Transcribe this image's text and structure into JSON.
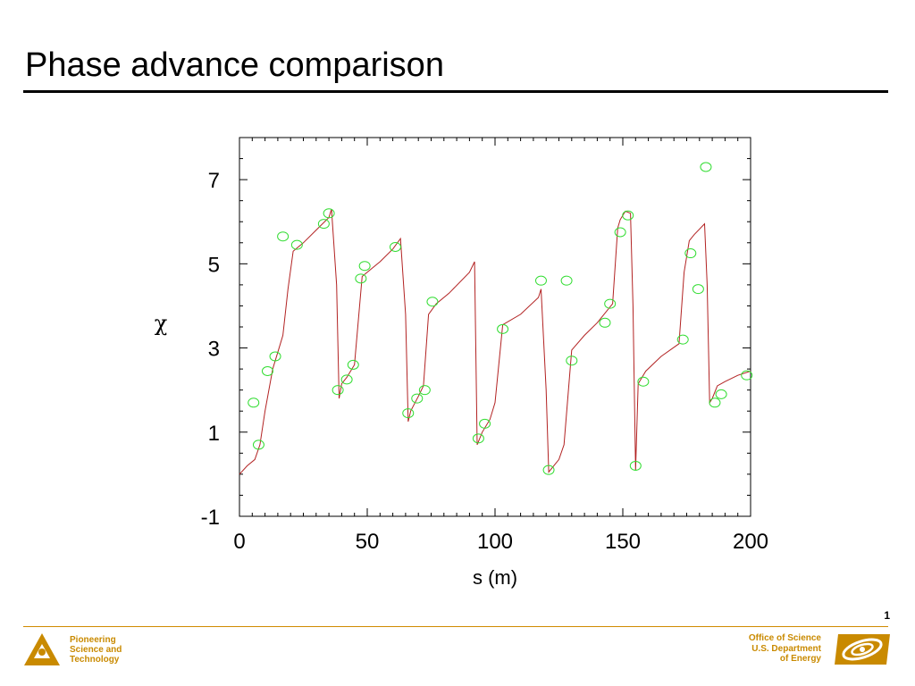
{
  "slide": {
    "title": "Phase advance comparison",
    "page_number": "1"
  },
  "footer": {
    "left_lines": [
      "Pioneering",
      "Science and",
      "Technology"
    ],
    "right_lines": [
      "Office of Science",
      "U.S. Department",
      "of Energy"
    ],
    "left_logo_icon": "argonne-triangle-logo-icon",
    "right_logo_icon": "doe-office-of-science-logo-icon",
    "accent_color": "#c98a00"
  },
  "chart_data": {
    "type": "line",
    "xlabel": "s (m)",
    "ylabel": "χ",
    "xlim": [
      0,
      200
    ],
    "ylim": [
      -1,
      8
    ],
    "xticks": [
      0,
      50,
      100,
      150,
      200
    ],
    "yticks": [
      -1,
      1,
      3,
      5,
      7
    ],
    "grid": false,
    "series": [
      {
        "style": "line",
        "color": "#b22222",
        "x": [
          0,
          3,
          6,
          8,
          10,
          13,
          15,
          17,
          19,
          21,
          25,
          30,
          35,
          36,
          38,
          39,
          40,
          42,
          45,
          48,
          50,
          55,
          60,
          63,
          65,
          66,
          67,
          70,
          72,
          74,
          77,
          82,
          90,
          92,
          93,
          95,
          98,
          100,
          103,
          110,
          117,
          118,
          120,
          121,
          125,
          127,
          130,
          135,
          140,
          146,
          148,
          149,
          151,
          153,
          154,
          155,
          156,
          159,
          165,
          172,
          174,
          176,
          178,
          182,
          183,
          184,
          185,
          187,
          190,
          195,
          200
        ],
        "y": [
          0.0,
          0.2,
          0.35,
          0.7,
          1.5,
          2.5,
          2.9,
          3.3,
          4.4,
          5.3,
          5.5,
          5.8,
          6.1,
          6.3,
          4.5,
          1.8,
          2.15,
          2.3,
          2.6,
          4.7,
          4.8,
          5.05,
          5.35,
          5.6,
          3.8,
          1.25,
          1.5,
          1.85,
          2.1,
          3.8,
          4.05,
          4.3,
          4.8,
          5.05,
          0.7,
          1.0,
          1.3,
          1.7,
          3.55,
          3.8,
          4.2,
          4.4,
          2.0,
          0.05,
          0.35,
          0.7,
          2.95,
          3.3,
          3.6,
          4.05,
          5.85,
          6.05,
          6.25,
          6.2,
          4.0,
          0.1,
          2.15,
          2.45,
          2.8,
          3.1,
          4.8,
          5.55,
          5.7,
          5.95,
          4.5,
          1.7,
          1.8,
          2.1,
          2.2,
          2.35,
          2.45
        ]
      },
      {
        "style": "markers",
        "color": "#33dd33",
        "x": [
          5.5,
          7.5,
          11,
          14,
          17,
          22.5,
          33,
          35,
          38.5,
          42,
          44.5,
          47.5,
          49,
          61,
          66,
          69.5,
          72.5,
          75.5,
          93.5,
          96,
          103,
          118,
          121,
          128,
          130,
          143,
          145,
          149,
          152,
          155,
          158,
          173.5,
          176.5,
          179.5,
          182.5,
          186,
          188.5,
          198.5
        ],
        "y": [
          1.7,
          0.7,
          2.45,
          2.8,
          5.65,
          5.45,
          5.95,
          6.2,
          2.0,
          2.25,
          2.6,
          4.65,
          4.95,
          5.4,
          1.45,
          1.8,
          2.0,
          4.1,
          0.85,
          1.2,
          3.45,
          4.6,
          0.1,
          4.6,
          2.7,
          3.6,
          4.05,
          5.75,
          6.15,
          0.2,
          2.2,
          3.2,
          5.25,
          4.4,
          7.3,
          1.7,
          1.9,
          2.35
        ]
      }
    ]
  }
}
